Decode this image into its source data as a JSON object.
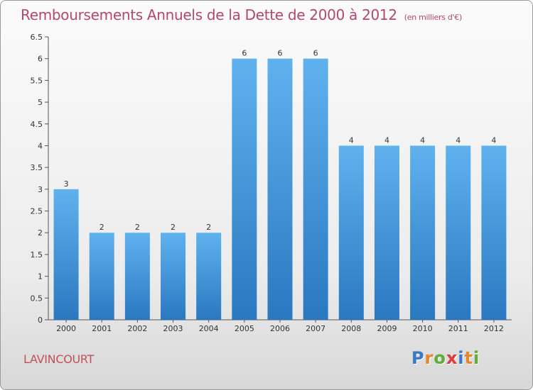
{
  "chart_data": {
    "type": "bar",
    "title": "Remboursements Annuels de la Dette de 2000 à 2012",
    "unit_note": "(en milliers d'€)",
    "categories": [
      "2000",
      "2001",
      "2002",
      "2003",
      "2004",
      "2005",
      "2006",
      "2007",
      "2008",
      "2009",
      "2010",
      "2011",
      "2012"
    ],
    "values": [
      3,
      2,
      2,
      2,
      2,
      6,
      6,
      6,
      4,
      4,
      4,
      4,
      4
    ],
    "ylim": [
      0,
      6.5
    ],
    "yticks": [
      "0",
      "0.5",
      "1",
      "1.5",
      "2",
      "2.5",
      "3",
      "3.5",
      "4",
      "4.5",
      "5",
      "5.5",
      "6",
      "6.5"
    ],
    "bar_color": "#3d93d8",
    "xlabel": "",
    "ylabel": ""
  },
  "footer": {
    "commune": "LAVINCOURT",
    "logo_letters": [
      "P",
      "r",
      "o",
      "x",
      "i",
      "t",
      "i"
    ],
    "logo_colors": [
      "#3a78c9",
      "#e8862a",
      "#5fae3c",
      "#e33b3b",
      "#3a78c9",
      "#e8862a",
      "#5fae3c"
    ]
  }
}
